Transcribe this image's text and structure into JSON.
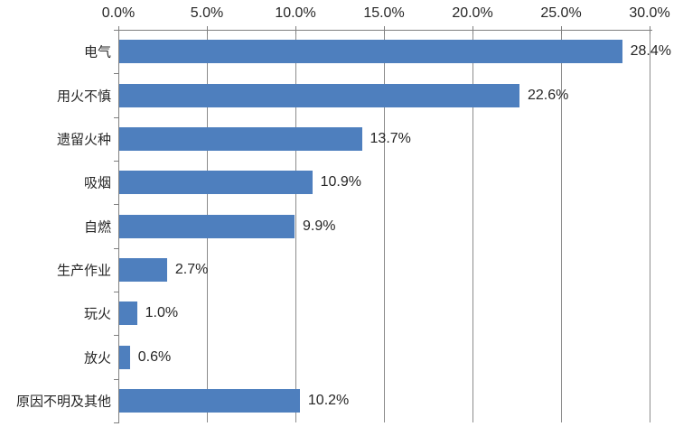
{
  "chart_data": {
    "type": "bar",
    "orientation": "horizontal",
    "title": "",
    "legend": "none",
    "categories": [
      "电气",
      "用火不慎",
      "遗留火种",
      "吸烟",
      "自燃",
      "生产作业",
      "玩火",
      "放火",
      "原因不明及其他"
    ],
    "values": [
      28.4,
      22.6,
      13.7,
      10.9,
      9.9,
      2.7,
      1.0,
      0.6,
      10.2
    ],
    "data_labels": [
      "28.4%",
      "22.6%",
      "13.7%",
      "10.9%",
      "9.9%",
      "2.7%",
      "1.0%",
      "0.6%",
      "10.2%"
    ],
    "x_axis": {
      "position": "top",
      "min": 0,
      "max": 30,
      "step": 5,
      "tick_labels": [
        "0.0%",
        "5.0%",
        "10.0%",
        "15.0%",
        "20.0%",
        "25.0%",
        "30.0%"
      ]
    },
    "grid": "vertical-major",
    "colors": {
      "bar": "#4E7FBE",
      "gridline": "#8C8C8C",
      "axis": "#7F7F7F",
      "text": "#262626",
      "background": "#FFFFFF"
    }
  }
}
